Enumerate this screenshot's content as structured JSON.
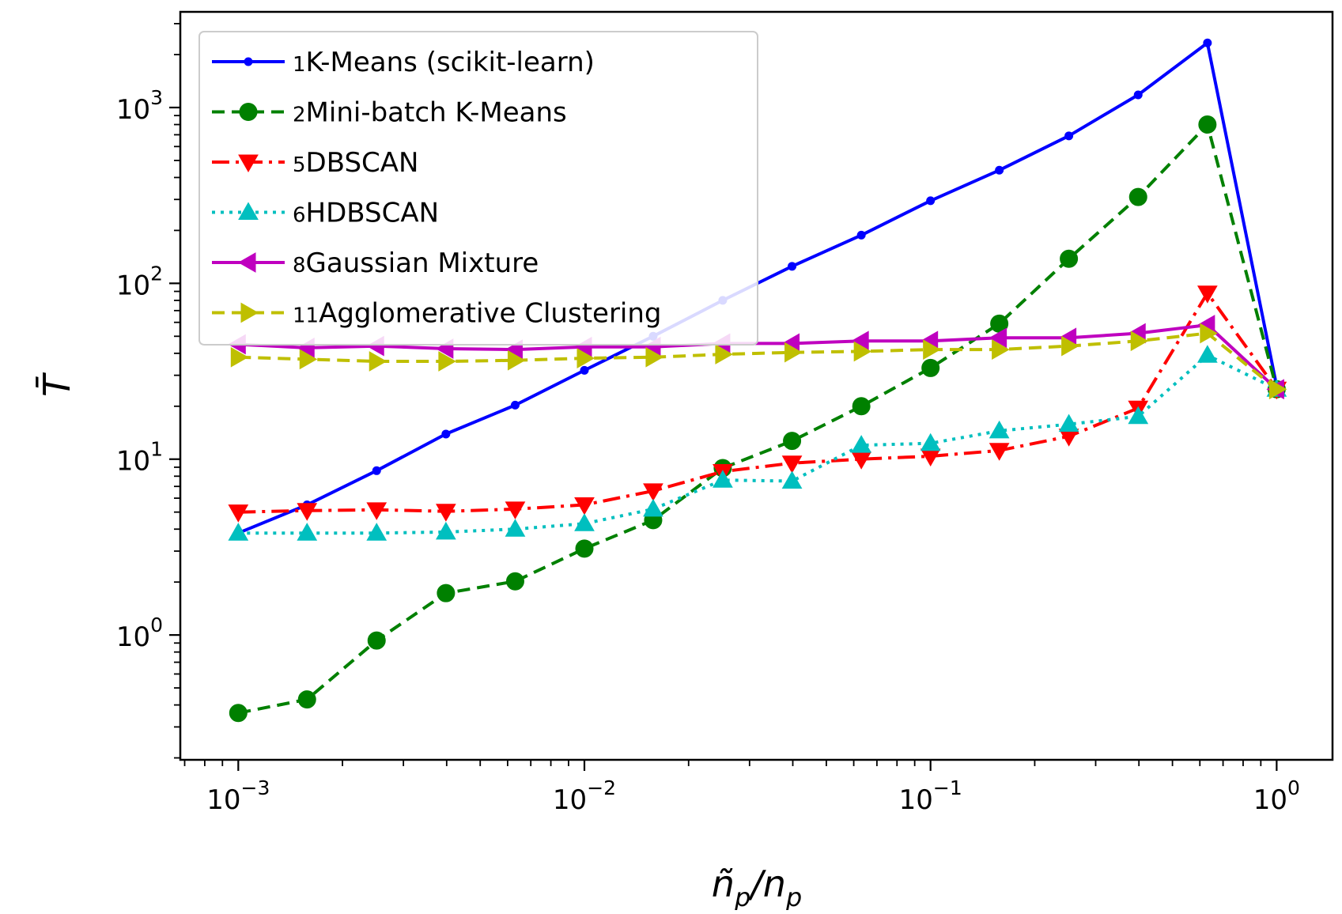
{
  "chart_data": {
    "type": "line",
    "xscale": "log",
    "yscale": "log",
    "xlim": [
      0.00068,
      1.45
    ],
    "ylim": [
      0.195,
      3500
    ],
    "xlabel": "ñp/np",
    "ylabel": "T̄",
    "x_ticks": [
      {
        "base": "10",
        "exp": "−3",
        "value": 0.001
      },
      {
        "base": "10",
        "exp": "−2",
        "value": 0.01
      },
      {
        "base": "10",
        "exp": "−1",
        "value": 0.1
      },
      {
        "base": "10",
        "exp": "0",
        "value": 1
      }
    ],
    "y_ticks": [
      {
        "base": "10",
        "exp": "0",
        "value": 1
      },
      {
        "base": "10",
        "exp": "1",
        "value": 10
      },
      {
        "base": "10",
        "exp": "2",
        "value": 100
      },
      {
        "base": "10",
        "exp": "3",
        "value": 1000
      }
    ],
    "legend_position": "upper-left",
    "x": [
      0.001,
      0.00158,
      0.00251,
      0.00398,
      0.00631,
      0.01,
      0.0158,
      0.0251,
      0.0398,
      0.0631,
      0.1,
      0.158,
      0.251,
      0.398,
      0.631,
      1.0
    ],
    "series": [
      {
        "id": "kmeans",
        "prefix": "1",
        "name": "K-Means (scikit-learn)",
        "color": "#0000ff",
        "dash": "",
        "marker": "dot",
        "values": [
          3.8,
          5.5,
          8.6,
          13.9,
          20.3,
          32.0,
          50.0,
          80.0,
          125.0,
          188.0,
          295.0,
          440.0,
          690.0,
          1180.0,
          2330.0,
          26.0
        ]
      },
      {
        "id": "minibatch",
        "prefix": "2",
        "name": "Mini-batch K-Means",
        "color": "#008000",
        "dash": "16 9",
        "marker": "circle",
        "values": [
          0.36,
          0.43,
          0.93,
          1.73,
          2.02,
          3.1,
          4.5,
          8.9,
          12.7,
          20.0,
          33.0,
          59.0,
          138.0,
          310.0,
          800.0,
          25.0
        ]
      },
      {
        "id": "dbscan",
        "prefix": "5",
        "name": "DBSCAN",
        "color": "#ff0000",
        "dash": "22 8 4 8",
        "marker": "triangle-down",
        "values": [
          5.0,
          5.1,
          5.15,
          5.05,
          5.2,
          5.5,
          6.6,
          8.5,
          9.5,
          10.0,
          10.4,
          11.2,
          13.5,
          19.5,
          88.0,
          25.0
        ]
      },
      {
        "id": "hdbscan",
        "prefix": "6",
        "name": "HDBSCAN",
        "color": "#00bfbf",
        "dash": "4 7",
        "marker": "triangle-up",
        "values": [
          3.8,
          3.8,
          3.8,
          3.85,
          4.0,
          4.3,
          5.2,
          7.6,
          7.5,
          12.0,
          12.3,
          14.5,
          15.8,
          17.5,
          39.0,
          25.0
        ]
      },
      {
        "id": "gmm",
        "prefix": "8",
        "name": "Gaussian Mixture",
        "color": "#bf00bf",
        "dash": "",
        "marker": "triangle-left",
        "values": [
          45.0,
          43.0,
          44.0,
          42.5,
          42.0,
          43.5,
          43.5,
          45.5,
          45.5,
          47.0,
          47.0,
          49.0,
          49.0,
          52.0,
          58.0,
          25.0
        ]
      },
      {
        "id": "agglomerative",
        "prefix": "11",
        "name": "Agglomerative Clustering",
        "color": "#bfbf00",
        "dash": "16 9",
        "marker": "triangle-right",
        "values": [
          38.0,
          37.0,
          36.0,
          36.0,
          36.5,
          37.5,
          38.0,
          39.5,
          40.5,
          41.0,
          42.0,
          42.0,
          44.0,
          47.0,
          52.0,
          25.0
        ]
      }
    ]
  }
}
